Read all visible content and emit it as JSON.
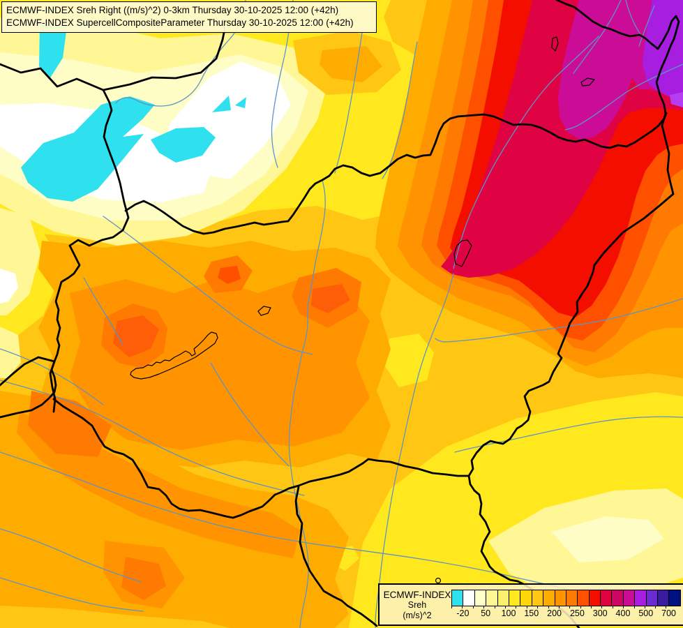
{
  "title_box": {
    "line1": "ECMWF-INDEX Sreh Right ((m/s)^2) 0-3km Thursday 30-10-2025 12:00 (+42h)",
    "line2": "ECMWF-INDEX SupercellCompositeParameter Thursday 30-10-2025 12:00 (+42h)"
  },
  "legend": {
    "product": "ECMWF-INDEX",
    "parameter": "Sreh",
    "units": "(m/s)^2",
    "tick_labels": [
      "-20",
      "50",
      "100",
      "150",
      "200",
      "250",
      "300",
      "400",
      "500",
      "700"
    ],
    "colors": [
      "#2FE1EF",
      "#FFFFFF",
      "#FFFFC9",
      "#FFF795",
      "#FAF26B",
      "#FFE81E",
      "#FFD60A",
      "#FFC613",
      "#FFAC00",
      "#FF9400",
      "#FF7A00",
      "#FF5000",
      "#F30E00",
      "#E0023F",
      "#CE0663",
      "#CB0C96",
      "#A81EE0",
      "#6A2BD0",
      "#3A1BA0",
      "#001080"
    ],
    "accent_colors": {
      "river_blue": "#5E93C5",
      "border_black": "#000000",
      "box_background": "#FCF0BE"
    }
  }
}
